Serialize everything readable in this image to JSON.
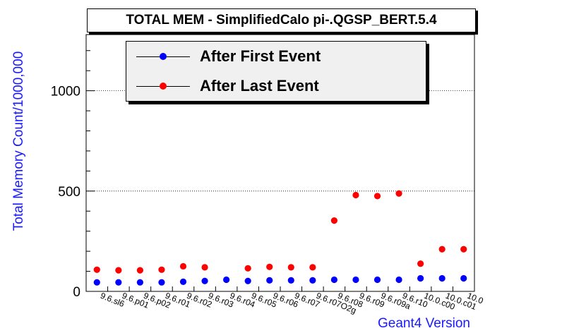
{
  "chart_data": {
    "type": "scatter",
    "title": "TOTAL MEM - SimplifiedCalo pi-.QGSP_BERT.5.4",
    "xlabel": "Geant4 Version",
    "ylabel": "Total Memory Count/1000,000",
    "ylim": [
      0,
      1280
    ],
    "yticks": [
      0,
      500,
      1000
    ],
    "grid": "horizontal dotted at major y ticks",
    "legend_position": "top-left",
    "categories": [
      "9.6.sl6",
      "9.6.p01",
      "9.6.p02",
      "9.6.r01",
      "9.6.r02",
      "9.6.r03",
      "9.6.r04",
      "9.6.r05",
      "9.6.r06",
      "9.6.r07",
      "9.6.r07O2g",
      "9.6.r08",
      "9.6.r09",
      "9.6.r09a",
      "9.6.r10",
      "10.0.c00",
      "10.0.c01",
      "10.0"
    ],
    "series": [
      {
        "name": "After First Event",
        "color": "#0000ff",
        "values": [
          45,
          45,
          45,
          45,
          48,
          52,
          58,
          52,
          55,
          55,
          55,
          58,
          58,
          58,
          58,
          65,
          65,
          65
        ]
      },
      {
        "name": "After Last Event",
        "color": "#ff0000",
        "values": [
          108,
          105,
          105,
          108,
          125,
          120,
          null,
          115,
          122,
          120,
          120,
          353,
          480,
          475,
          488,
          138,
          210,
          210
        ]
      }
    ]
  }
}
